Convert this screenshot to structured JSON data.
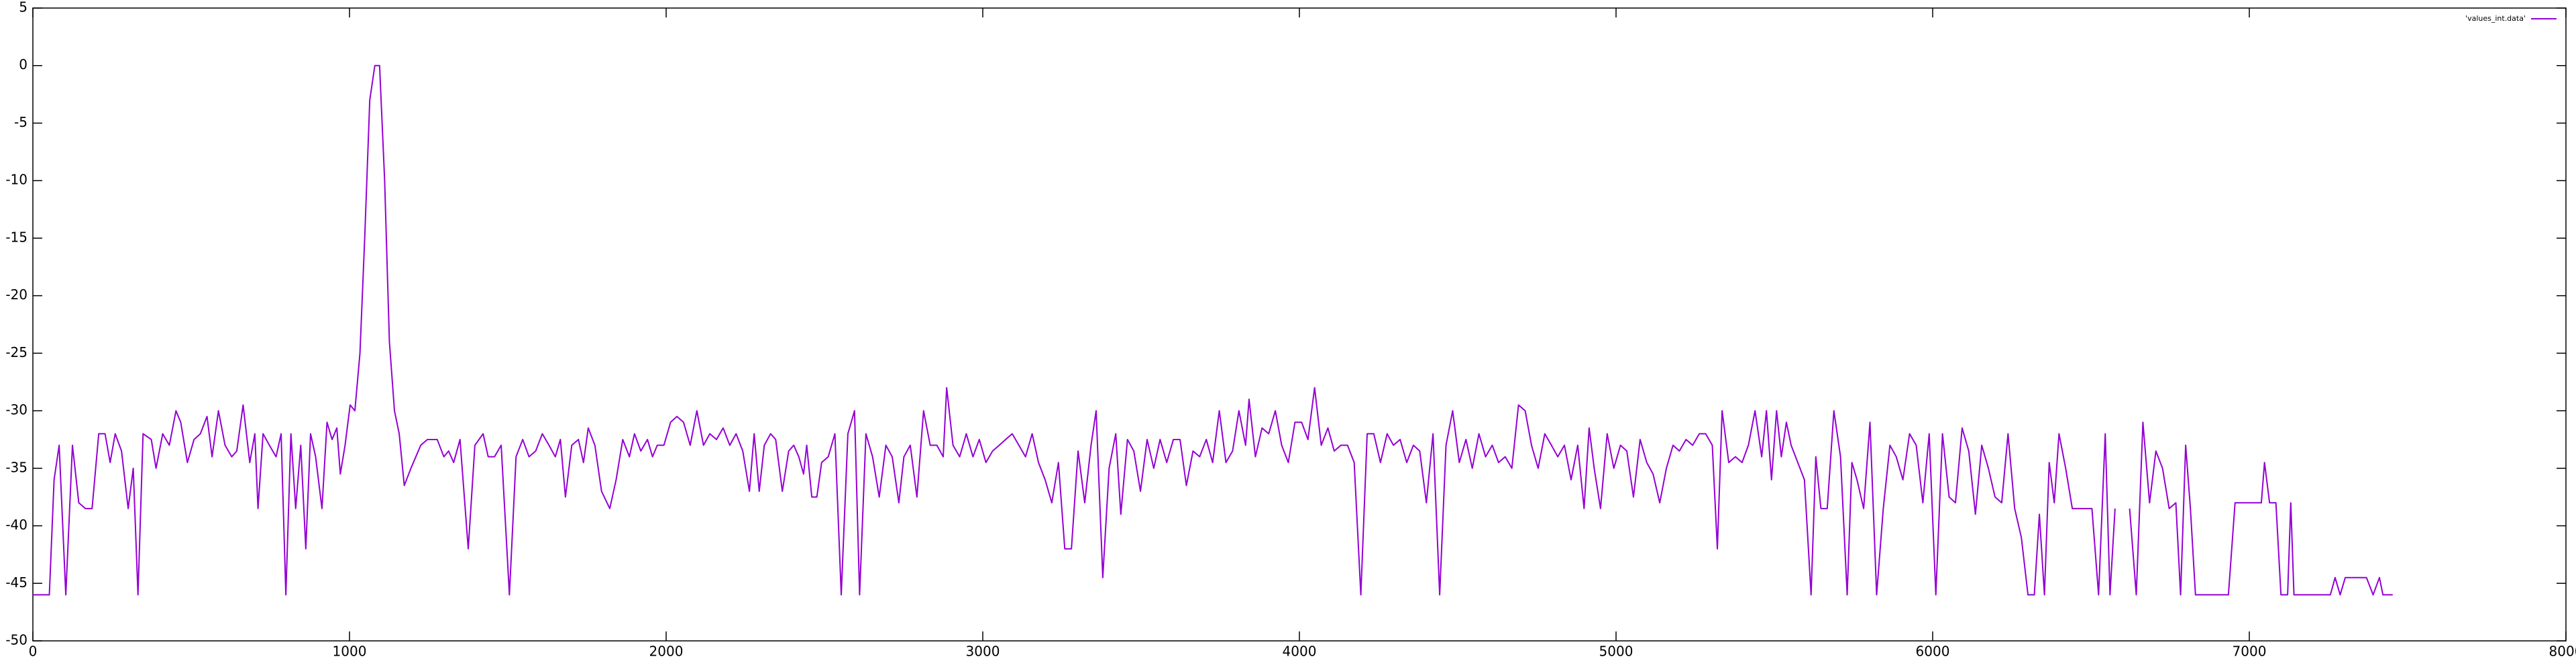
{
  "chart_data": {
    "type": "line",
    "x": [
      0,
      52,
      67,
      83,
      104,
      125,
      145,
      166,
      187,
      208,
      228,
      244,
      260,
      280,
      301,
      317,
      332,
      348,
      374,
      389,
      410,
      431,
      452,
      467,
      488,
      509,
      529,
      550,
      566,
      586,
      607,
      628,
      644,
      664,
      685,
      701,
      711,
      727,
      747,
      768,
      784,
      799,
      815,
      830,
      846,
      862,
      877,
      893,
      913,
      929,
      945,
      960,
      971,
      986,
      1002,
      1017,
      1033,
      1048,
      1064,
      1080,
      1095,
      1111,
      1126,
      1142,
      1157,
      1173,
      1194,
      1225,
      1246,
      1277,
      1298,
      1313,
      1329,
      1349,
      1375,
      1396,
      1422,
      1438,
      1458,
      1479,
      1505,
      1526,
      1547,
      1567,
      1588,
      1609,
      1630,
      1650,
      1666,
      1682,
      1702,
      1723,
      1739,
      1754,
      1775,
      1796,
      1822,
      1842,
      1863,
      1884,
      1900,
      1920,
      1941,
      1957,
      1972,
      1993,
      2014,
      2034,
      2055,
      2076,
      2097,
      2118,
      2138,
      2159,
      2180,
      2201,
      2221,
      2242,
      2263,
      2278,
      2294,
      2310,
      2330,
      2346,
      2367,
      2387,
      2403,
      2419,
      2434,
      2444,
      2460,
      2476,
      2491,
      2512,
      2533,
      2553,
      2574,
      2595,
      2611,
      2631,
      2652,
      2673,
      2694,
      2714,
      2735,
      2751,
      2771,
      2792,
      2813,
      2834,
      2855,
      2875,
      2886,
      2906,
      2927,
      2948,
      2969,
      2989,
      3010,
      3031,
      3052,
      3072,
      3093,
      3114,
      3135,
      3156,
      3176,
      3197,
      3218,
      3239,
      3259,
      3280,
      3301,
      3322,
      3342,
      3358,
      3379,
      3399,
      3420,
      3436,
      3457,
      3477,
      3498,
      3519,
      3540,
      3560,
      3581,
      3602,
      3623,
      3643,
      3664,
      3685,
      3706,
      3726,
      3747,
      3768,
      3789,
      3809,
      3830,
      3841,
      3861,
      3882,
      3903,
      3924,
      3944,
      3965,
      3986,
      4007,
      4027,
      4048,
      4069,
      4090,
      4110,
      4131,
      4152,
      4173,
      4194,
      4214,
      4235,
      4256,
      4277,
      4297,
      4318,
      4339,
      4360,
      4380,
      4401,
      4422,
      4443,
      4463,
      4484,
      4505,
      4526,
      4546,
      4567,
      4588,
      4609,
      4629,
      4650,
      4671,
      4692,
      4713,
      4733,
      4754,
      4775,
      4796,
      4816,
      4837,
      4858,
      4879,
      4899,
      4915,
      4931,
      4951,
      4972,
      4993,
      5014,
      5034,
      5055,
      5076,
      5097,
      5117,
      5138,
      5159,
      5180,
      5200,
      5221,
      5242,
      5263,
      5283,
      5304,
      5320,
      5335,
      5356,
      5377,
      5398,
      5418,
      5439,
      5460,
      5475,
      5491,
      5507,
      5522,
      5538,
      5553,
      5574,
      5595,
      5616,
      5631,
      5647,
      5667,
      5688,
      5709,
      5730,
      5745,
      5761,
      5782,
      5802,
      5823,
      5844,
      5865,
      5885,
      5906,
      5927,
      5948,
      5969,
      5989,
      6010,
      6031,
      6052,
      6072,
      6093,
      6114,
      6135,
      6155,
      6176,
      6197,
      6218,
      6238,
      6259,
      6280,
      6301,
      6321,
      6337,
      6353,
      6368,
      6384,
      6399,
      6420,
      6441,
      6462,
      6482,
      6503,
      6524,
      6545,
      6560,
      6576,
      6600,
      6622,
      6643,
      6664,
      6685,
      6705,
      6726,
      6747,
      6768,
      6783,
      6799,
      6814,
      6830,
      6851,
      6934,
      6955,
      7038,
      7048,
      7064,
      7084,
      7100,
      7121,
      7131,
      7141,
      7256,
      7271,
      7287,
      7303,
      7370,
      7391,
      7411,
      7422,
      7453
    ],
    "series": [
      {
        "name": "'values_int.data'",
        "color": "#9400d3",
        "values": [
          -46,
          -46,
          -36,
          -33,
          -46,
          -33,
          -38,
          -38.5,
          -38.5,
          -32,
          -32,
          -34.5,
          -32,
          -33.5,
          -38.5,
          -35,
          -46,
          -32,
          -32.5,
          -35,
          -32,
          -33,
          -30,
          -31,
          -34.5,
          -32.5,
          -32,
          -30.5,
          -34,
          -30,
          -33,
          -34,
          -33.5,
          -29.5,
          -34.5,
          -32,
          -38.5,
          -32,
          -33,
          -34,
          -32,
          -46,
          -32,
          -38.5,
          -33,
          -42,
          -32,
          -34,
          -38.5,
          -31,
          -32.5,
          -31.5,
          -35.5,
          -33,
          -29.5,
          -30,
          -25,
          -15,
          -3,
          0,
          0,
          -10,
          -24,
          -30,
          -32,
          -36.5,
          -35,
          -33,
          -32.5,
          -32.5,
          -34,
          -33.5,
          -34.5,
          -32.5,
          -42,
          -33,
          -32,
          -34,
          -34,
          -33,
          -46,
          -34,
          -32.5,
          -34,
          -33.5,
          -32,
          -33,
          -34,
          -32.5,
          -37.5,
          -33,
          -32.5,
          -34.5,
          -31.5,
          -33,
          -37,
          -38.5,
          -36,
          -32.5,
          -34,
          -32,
          -33.5,
          -32.5,
          -34,
          -33,
          -33,
          -31,
          -30.5,
          -31,
          -33,
          -30,
          -33,
          -32,
          -32.5,
          -31.5,
          -33,
          -32,
          -33.5,
          -37,
          -32,
          -37,
          -33,
          -32,
          -32.5,
          -37,
          -33.5,
          -33,
          -34,
          -35.5,
          -33,
          -37.5,
          -37.5,
          -34.5,
          -34,
          -32,
          -46,
          -32,
          -30,
          -46,
          -32,
          -34,
          -37.5,
          -33,
          -34,
          -38,
          -34,
          -33,
          -37.5,
          -30,
          -33,
          -33,
          -34,
          -28,
          -33,
          -34,
          -32,
          -34,
          -32.5,
          -34.5,
          -33.5,
          -33,
          -32.5,
          -32,
          -33,
          -34,
          -32,
          -34.5,
          -36,
          -38,
          -34.5,
          -42,
          -42,
          -33.5,
          -38,
          -33,
          -30,
          -44.5,
          -35,
          -32,
          -39,
          -32.5,
          -33.5,
          -37,
          -32.5,
          -35,
          -32.5,
          -34.5,
          -32.5,
          -32.5,
          -36.5,
          -33.5,
          -34,
          -32.5,
          -34.5,
          -30,
          -34.5,
          -33.5,
          -30,
          -33,
          -29,
          -34,
          -31.5,
          -32,
          -30,
          -33,
          -34.5,
          -31,
          -31,
          -32.5,
          -28,
          -33,
          -31.5,
          -33.5,
          -33,
          -33,
          -34.5,
          -46,
          -32,
          -32,
          -34.5,
          -32,
          -33,
          -32.5,
          -34.5,
          -33,
          -33.5,
          -38,
          -32,
          -46,
          -33,
          -30,
          -34.5,
          -32.5,
          -35,
          -32,
          -34,
          -33,
          -34.5,
          -34,
          -35,
          -29.5,
          -30,
          -33,
          -35,
          -32,
          -33,
          -34,
          -33,
          -36,
          -33,
          -38.5,
          -31.5,
          -35,
          -38.5,
          -32,
          -35,
          -33,
          -33.5,
          -37.5,
          -32.5,
          -34.5,
          -35.5,
          -38,
          -35,
          -33,
          -33.5,
          -32.5,
          -33,
          -32,
          -32,
          -33,
          -42,
          -30,
          -34.5,
          -34,
          -34.5,
          -33,
          -30,
          -34,
          -30,
          -36,
          -30,
          -34,
          -31,
          -33,
          -34.5,
          -36,
          -46,
          -34,
          -38.5,
          -38.5,
          -30,
          -34,
          -46,
          -34.5,
          -36,
          -38.5,
          -31,
          -46,
          -38.5,
          -33,
          -34,
          -36,
          -32,
          -33,
          -38,
          -32,
          -46,
          -32,
          -37.5,
          -38,
          -31.5,
          -33.5,
          -39,
          -33,
          -35,
          -37.5,
          -38,
          -32,
          -38.5,
          -41,
          -46,
          -46,
          -39,
          -46,
          -34.5,
          -38,
          -32,
          -35,
          -38.5,
          -38.5,
          -38.5,
          -38.5,
          -46,
          -32,
          -46,
          -38.5,
          null,
          -38.5,
          -46,
          -31,
          -38,
          -33.5,
          -35,
          -38.5,
          -38,
          -46,
          -33,
          -38.5,
          -46,
          -46,
          -46,
          -38,
          -38,
          -34.5,
          -38,
          -38,
          -46,
          -46,
          -38,
          -46,
          -46,
          -44.5,
          -46,
          -44.5,
          -44.5,
          -46,
          -44.5,
          -46,
          -46
        ]
      }
    ],
    "xlim": [
      0,
      8000
    ],
    "xticks": [
      0,
      1000,
      2000,
      3000,
      4000,
      5000,
      6000,
      7000,
      8000
    ],
    "ylim": [
      -50,
      5
    ],
    "yticks": [
      5,
      0,
      -5,
      -10,
      -15,
      -20,
      -25,
      -30,
      -35,
      -40,
      -45,
      -50
    ],
    "grid": false,
    "legend": "top-right"
  }
}
